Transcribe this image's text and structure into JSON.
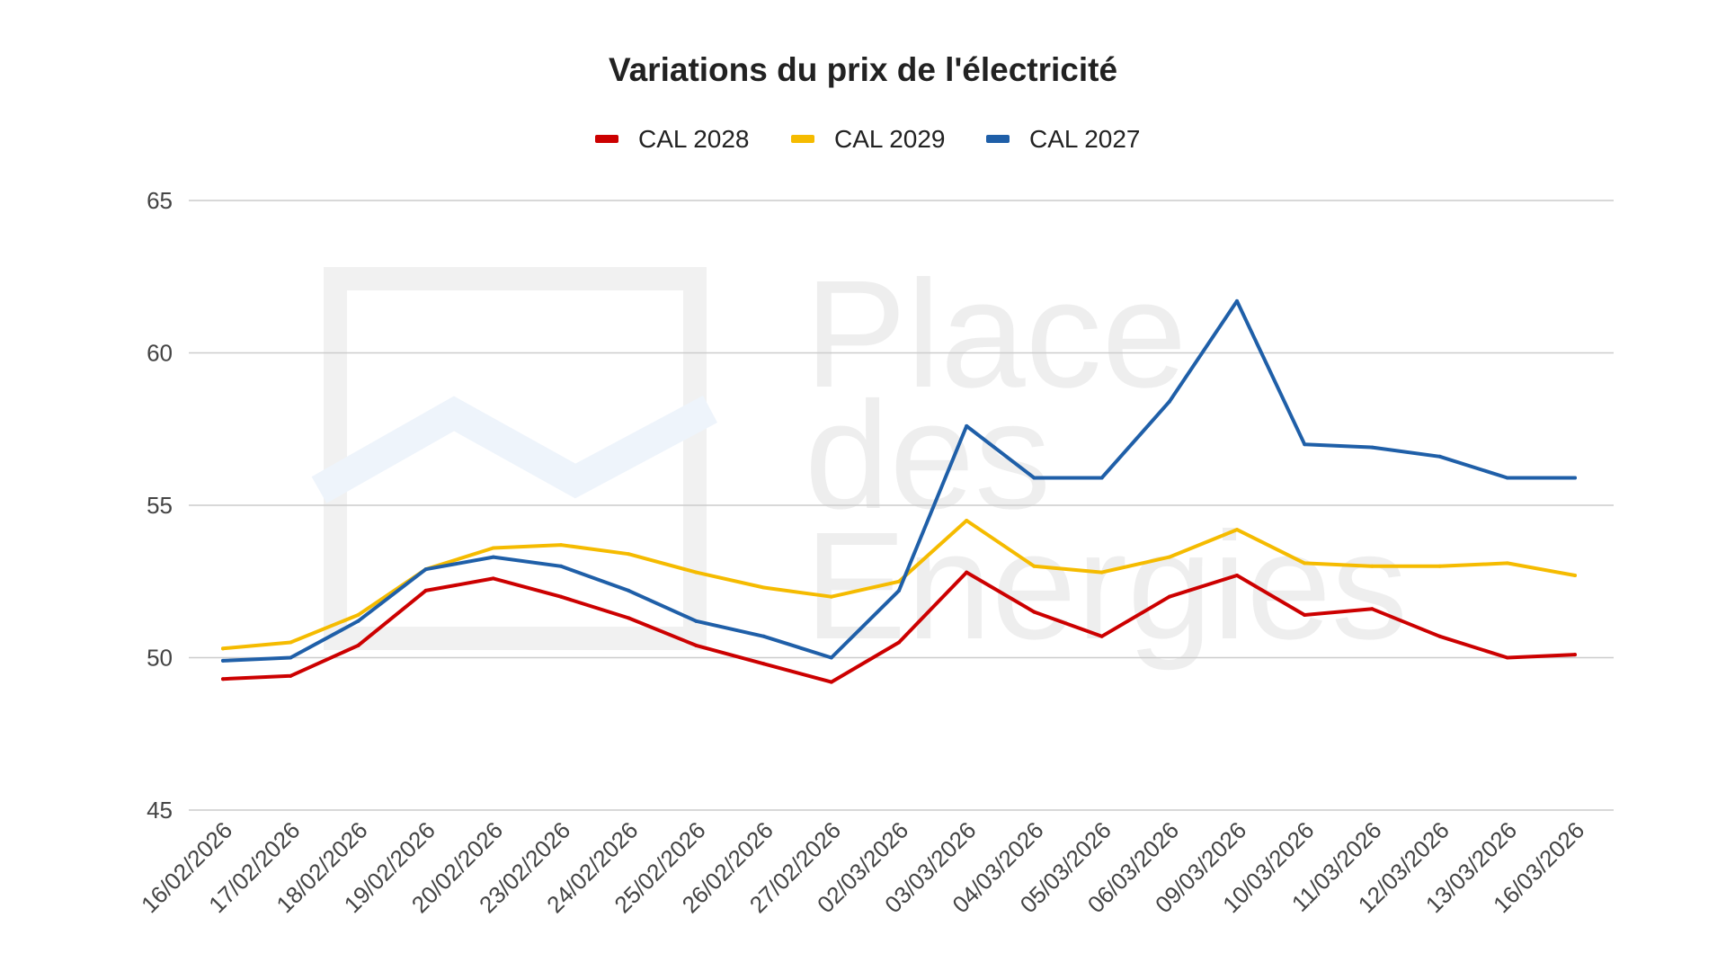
{
  "chart_data": {
    "type": "line",
    "title": "Variations du prix de l'électricité",
    "xlabel": "",
    "ylabel": "",
    "ylim": [
      45,
      65
    ],
    "yticks": [
      45,
      50,
      55,
      60,
      65
    ],
    "grid": true,
    "legend_position": "top",
    "categories": [
      "16/02/2026",
      "17/02/2026",
      "18/02/2026",
      "19/02/2026",
      "20/02/2026",
      "23/02/2026",
      "24/02/2026",
      "25/02/2026",
      "26/02/2026",
      "27/02/2026",
      "02/03/2026",
      "03/03/2026",
      "04/03/2026",
      "05/03/2026",
      "06/03/2026",
      "09/03/2026",
      "10/03/2026",
      "11/03/2026",
      "12/03/2026",
      "13/03/2026",
      "16/03/2026"
    ],
    "series": [
      {
        "name": "CAL 2028",
        "color": "#cc0000",
        "values": [
          49.3,
          49.4,
          50.4,
          52.2,
          52.6,
          52.0,
          51.3,
          50.4,
          49.8,
          49.2,
          50.5,
          52.8,
          51.5,
          50.7,
          52.0,
          52.7,
          51.4,
          51.6,
          50.7,
          50.0,
          50.1
        ]
      },
      {
        "name": "CAL 2029",
        "color": "#f5bb00",
        "values": [
          50.3,
          50.5,
          51.4,
          52.9,
          53.6,
          53.7,
          53.4,
          52.8,
          52.3,
          52.0,
          52.5,
          54.5,
          53.0,
          52.8,
          53.3,
          54.2,
          53.1,
          53.0,
          53.0,
          53.1,
          52.7
        ]
      },
      {
        "name": "CAL 2027",
        "color": "#1f5fa8",
        "values": [
          49.9,
          50.0,
          51.2,
          52.9,
          53.3,
          53.0,
          52.2,
          51.2,
          50.7,
          50.0,
          52.2,
          57.6,
          55.9,
          55.9,
          58.4,
          61.7,
          57.0,
          56.9,
          56.6,
          55.9,
          55.9
        ]
      }
    ],
    "watermark_text": [
      "Place",
      "des",
      "Energies"
    ]
  }
}
